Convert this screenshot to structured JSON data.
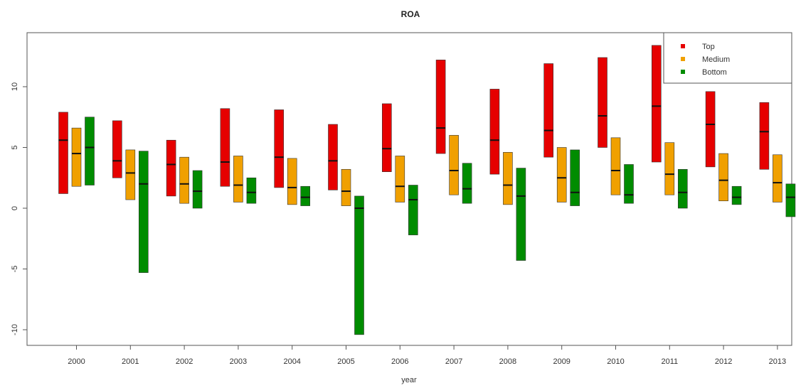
{
  "chart_data": {
    "type": "bar",
    "title": "ROA",
    "xlabel": "year",
    "ylabel": "",
    "categories": [
      "2000",
      "2001",
      "2002",
      "2003",
      "2004",
      "2005",
      "2006",
      "2007",
      "2008",
      "2009",
      "2010",
      "2011",
      "2012",
      "2013"
    ],
    "ylim": [
      -10.8,
      14.3
    ],
    "yticks": [
      -10,
      -5,
      0,
      5,
      10
    ],
    "legend_position": "top-right",
    "series": [
      {
        "name": "Top",
        "color": "#e60000",
        "low": [
          1.2,
          2.5,
          1.0,
          1.8,
          1.7,
          1.5,
          3.0,
          4.5,
          2.8,
          4.2,
          5.0,
          3.8,
          3.4,
          3.2
        ],
        "median": [
          5.6,
          3.9,
          3.6,
          3.8,
          4.2,
          3.9,
          4.9,
          6.6,
          5.6,
          6.4,
          7.6,
          8.4,
          6.9,
          6.3
        ],
        "high": [
          7.9,
          7.2,
          5.6,
          8.2,
          8.1,
          6.9,
          8.6,
          12.2,
          9.8,
          11.9,
          12.4,
          13.4,
          9.6,
          8.7
        ]
      },
      {
        "name": "Medium",
        "color": "#f0a000",
        "low": [
          1.8,
          0.7,
          0.4,
          0.5,
          0.3,
          0.2,
          0.5,
          1.1,
          0.3,
          0.5,
          1.1,
          1.1,
          0.6,
          0.5
        ],
        "median": [
          4.5,
          2.9,
          2.0,
          1.9,
          1.7,
          1.4,
          1.8,
          3.1,
          1.9,
          2.5,
          3.1,
          2.8,
          2.3,
          2.1
        ],
        "high": [
          6.6,
          4.8,
          4.2,
          4.3,
          4.1,
          3.2,
          4.3,
          6.0,
          4.6,
          5.0,
          5.8,
          5.4,
          4.5,
          4.4
        ]
      },
      {
        "name": "Bottom",
        "color": "#008c00",
        "low": [
          1.9,
          -5.3,
          0.0,
          0.4,
          0.2,
          -10.4,
          -2.2,
          0.4,
          -4.3,
          0.2,
          0.4,
          0.0,
          0.3,
          -0.7
        ],
        "median": [
          5.0,
          2.0,
          1.4,
          1.3,
          0.9,
          0.0,
          0.7,
          1.6,
          1.0,
          1.3,
          1.1,
          1.3,
          0.9,
          0.9
        ],
        "high": [
          7.5,
          4.7,
          3.1,
          2.5,
          1.8,
          1.0,
          1.9,
          3.7,
          3.3,
          4.8,
          3.6,
          3.2,
          1.8,
          2.0
        ]
      }
    ]
  }
}
